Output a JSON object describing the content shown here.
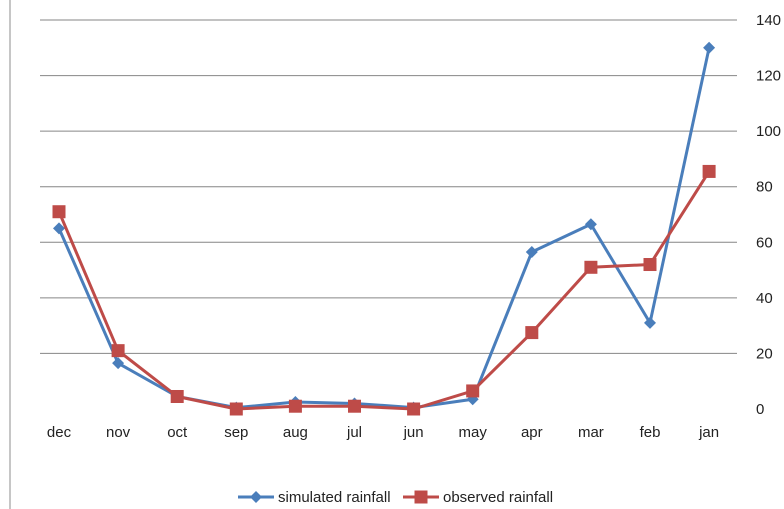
{
  "chart_data": {
    "type": "line",
    "categories": [
      "dec",
      "nov",
      "oct",
      "sep",
      "aug",
      "jul",
      "jun",
      "may",
      "apr",
      "mar",
      "feb",
      "jan"
    ],
    "series": [
      {
        "name": "simulated rainfall",
        "color": "#4a7ebb",
        "marker": "diamond",
        "values": [
          65,
          16.5,
          4.5,
          0.5,
          2.5,
          2,
          0.5,
          3.5,
          56.5,
          66.5,
          31,
          130
        ]
      },
      {
        "name": "observed rainfall",
        "color": "#be4b48",
        "marker": "square",
        "values": [
          71,
          21,
          4.5,
          0,
          1,
          1,
          0,
          6.5,
          27.5,
          51,
          52,
          85.5
        ]
      }
    ],
    "y_ticks": [
      "0",
      "20",
      "40",
      "60",
      "80",
      "100",
      "120",
      "140"
    ],
    "ylim": [
      0,
      140
    ],
    "y_axis_side": "right",
    "grid": true,
    "legend_position": "bottom"
  }
}
